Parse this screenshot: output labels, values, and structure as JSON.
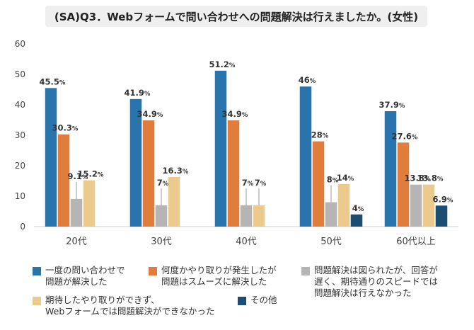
{
  "chart_data": {
    "type": "bar",
    "title": "(SA)Q3．Webフォームで問い合わせへの問題解決は行えましたか。(女性)",
    "categories": [
      "20代",
      "30代",
      "40代",
      "50代",
      "60代以上"
    ],
    "ylim": [
      0,
      60
    ],
    "yticks": [
      "0",
      "10",
      "20",
      "30",
      "40",
      "50",
      "60"
    ],
    "grid": false,
    "legend_position": "bottom",
    "series": [
      {
        "name": "一度の問い合わせで\n問題が解決した",
        "color": "#2a74ad",
        "values": [
          45.5,
          41.9,
          51.2,
          46,
          37.9
        ],
        "labels": [
          "45.5",
          "41.9",
          "51.2",
          "46",
          "37.9"
        ]
      },
      {
        "name": "何度かやり取りが発生したが\n問題はスムーズに解決した",
        "color": "#e07d3c",
        "values": [
          30.3,
          34.9,
          34.9,
          28,
          27.6
        ],
        "labels": [
          "30.3",
          "34.9",
          "34.9",
          "28",
          "27.6"
        ]
      },
      {
        "name": "問題解決は図られたが、回答が\n遅く、期待通りのスピードでは\n問題解決は行えなかった",
        "color": "#b5b5b5",
        "values": [
          9.1,
          7,
          7,
          8,
          13.8
        ],
        "labels": [
          "9.1",
          "7",
          "7",
          "8",
          "13.8"
        ]
      },
      {
        "name": "期待したやり取りができず、\nWebフォームでは問題解決ができなかった",
        "color": "#ecc98c",
        "values": [
          15.2,
          16.3,
          7,
          14,
          13.8
        ],
        "labels": [
          "15.2",
          "16.3",
          "7",
          "14",
          "13.8"
        ]
      },
      {
        "name": "その他",
        "color": "#1c4e74",
        "values": [
          0,
          0,
          0,
          4,
          6.9
        ],
        "labels": [
          "",
          "",
          "",
          "4",
          "6.9"
        ]
      }
    ],
    "unit_suffix": "%"
  }
}
